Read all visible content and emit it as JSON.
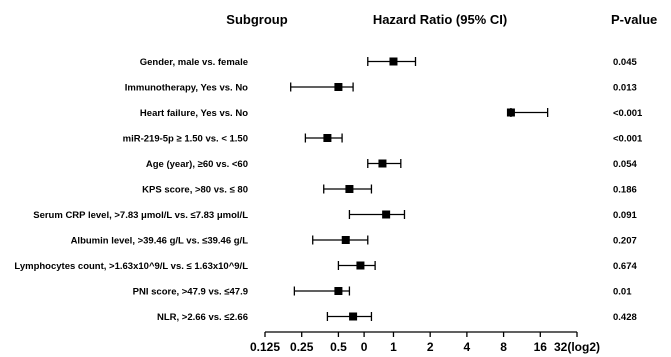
{
  "chart_data": {
    "type": "forest",
    "headers": {
      "subgroup": "Subgroup",
      "ratio": "Hazard Ratio (95% CI)",
      "pvalue": "P-value"
    },
    "x_ticks": [
      "0.125",
      "0.25",
      "0.5",
      "0",
      "1",
      "2",
      "4",
      "8",
      "16",
      "32(log2)"
    ],
    "x_tick_positions": [
      -3,
      -2,
      -1,
      -0.3,
      0.5,
      1.5,
      2.5,
      3.5,
      4.5,
      5.5
    ],
    "xlim": [
      -3,
      5.5
    ],
    "x_scale": "log2",
    "rows": [
      {
        "label": "Gender, male vs. female",
        "point": 0.5,
        "lower": -0.2,
        "upper": 1.1,
        "p": "0.045"
      },
      {
        "label": "Immunotherapy, Yes vs. No",
        "point": -1.0,
        "lower": -2.3,
        "upper": -0.6,
        "p": "0.013"
      },
      {
        "label": "Heart failure, Yes vs. No",
        "point": 3.7,
        "lower": 3.7,
        "upper": 4.7,
        "p": "<0.001"
      },
      {
        "label": "miR-219-5p ≥ 1.50 vs. < 1.50",
        "point": -1.3,
        "lower": -1.9,
        "upper": -0.9,
        "p": "<0.001"
      },
      {
        "label": "Age (year), ≥60 vs.  <60",
        "point": 0.2,
        "lower": -0.2,
        "upper": 0.7,
        "p": "0.054"
      },
      {
        "label": "KPS score, >80 vs. ≤ 80",
        "point": -0.7,
        "lower": -1.4,
        "upper": -0.1,
        "p": "0.186"
      },
      {
        "label": "Serum CRP level, >7.83 μmol/L vs. ≤7.83 μmol/L",
        "point": 0.3,
        "lower": -0.7,
        "upper": 0.8,
        "p": "0.091"
      },
      {
        "label": "Albumin level, >39.46 g/L vs. ≤39.46 g/L",
        "point": -0.8,
        "lower": -1.7,
        "upper": -0.2,
        "p": "0.207"
      },
      {
        "label": "Lymphocytes count, >1.63x10^9/L vs. ≤ 1.63x10^9/L",
        "point": -0.4,
        "lower": -1.0,
        "upper": 0.0,
        "p": "0.674"
      },
      {
        "label": "PNI score, >47.9 vs. ≤47.9",
        "point": -1.0,
        "lower": -2.2,
        "upper": -0.7,
        "p": "0.01"
      },
      {
        "label": "NLR, >2.66 vs. ≤2.66",
        "point": -0.6,
        "lower": -1.3,
        "upper": -0.1,
        "p": "0.428"
      }
    ]
  }
}
